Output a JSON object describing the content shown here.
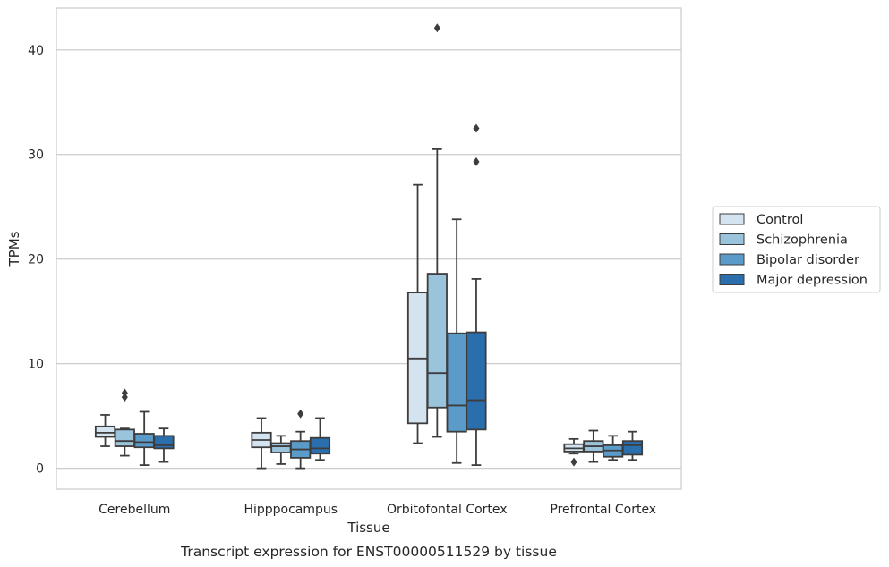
{
  "chart_data": {
    "type": "boxplot",
    "title": "",
    "caption": "Transcript expression for ENST00000511529 by tissue",
    "xlabel": "Tissue",
    "ylabel": "TPMs",
    "ylim": [
      -2,
      44
    ],
    "yticks": [
      0,
      10,
      20,
      30,
      40
    ],
    "grid": "horizontal",
    "legend_position": "right",
    "categories": [
      "Cerebellum",
      "Hipppocampus",
      "Orbitofontal Cortex",
      "Prefrontal Cortex"
    ],
    "series": [
      {
        "name": "Control",
        "color": "#d4e3f0",
        "boxes": [
          {
            "whislo": 2.1,
            "q1": 3.0,
            "med": 3.4,
            "q3": 4.0,
            "whishi": 5.1,
            "fliers": []
          },
          {
            "whislo": 0.0,
            "q1": 2.0,
            "med": 2.7,
            "q3": 3.4,
            "whishi": 4.8,
            "fliers": []
          },
          {
            "whislo": 2.4,
            "q1": 4.3,
            "med": 10.5,
            "q3": 16.8,
            "whishi": 27.1,
            "fliers": []
          },
          {
            "whislo": 1.4,
            "q1": 1.6,
            "med": 1.9,
            "q3": 2.3,
            "whishi": 2.8,
            "fliers": [
              0.6
            ]
          }
        ]
      },
      {
        "name": "Schizophrenia",
        "color": "#9ac3dc",
        "boxes": [
          {
            "whislo": 1.2,
            "q1": 2.1,
            "med": 2.6,
            "q3": 3.7,
            "whishi": 3.8,
            "fliers": [
              6.8,
              7.2
            ]
          },
          {
            "whislo": 0.4,
            "q1": 1.5,
            "med": 2.1,
            "q3": 2.4,
            "whishi": 3.1,
            "fliers": []
          },
          {
            "whislo": 3.0,
            "q1": 5.8,
            "med": 9.1,
            "q3": 18.6,
            "whishi": 30.5,
            "fliers": [
              42.1
            ]
          },
          {
            "whislo": 0.6,
            "q1": 1.6,
            "med": 2.1,
            "q3": 2.6,
            "whishi": 3.6,
            "fliers": []
          }
        ]
      },
      {
        "name": "Bipolar disorder",
        "color": "#5b9bc9",
        "boxes": [
          {
            "whislo": 0.3,
            "q1": 2.0,
            "med": 2.5,
            "q3": 3.3,
            "whishi": 5.4,
            "fliers": []
          },
          {
            "whislo": 0.0,
            "q1": 1.0,
            "med": 1.8,
            "q3": 2.6,
            "whishi": 3.5,
            "fliers": [
              5.2
            ]
          },
          {
            "whislo": 0.5,
            "q1": 3.5,
            "med": 6.0,
            "q3": 12.9,
            "whishi": 23.8,
            "fliers": []
          },
          {
            "whislo": 0.8,
            "q1": 1.1,
            "med": 1.7,
            "q3": 2.2,
            "whishi": 3.1,
            "fliers": []
          }
        ]
      },
      {
        "name": "Major depression",
        "color": "#2b6ead",
        "boxes": [
          {
            "whislo": 0.6,
            "q1": 1.9,
            "med": 2.2,
            "q3": 3.1,
            "whishi": 3.8,
            "fliers": []
          },
          {
            "whislo": 0.8,
            "q1": 1.4,
            "med": 1.9,
            "q3": 2.9,
            "whishi": 4.8,
            "fliers": []
          },
          {
            "whislo": 0.3,
            "q1": 3.7,
            "med": 6.5,
            "q3": 13.0,
            "whishi": 18.1,
            "fliers": [
              29.3,
              32.5
            ]
          },
          {
            "whislo": 0.8,
            "q1": 1.3,
            "med": 2.2,
            "q3": 2.6,
            "whishi": 3.5,
            "fliers": []
          }
        ]
      }
    ]
  }
}
